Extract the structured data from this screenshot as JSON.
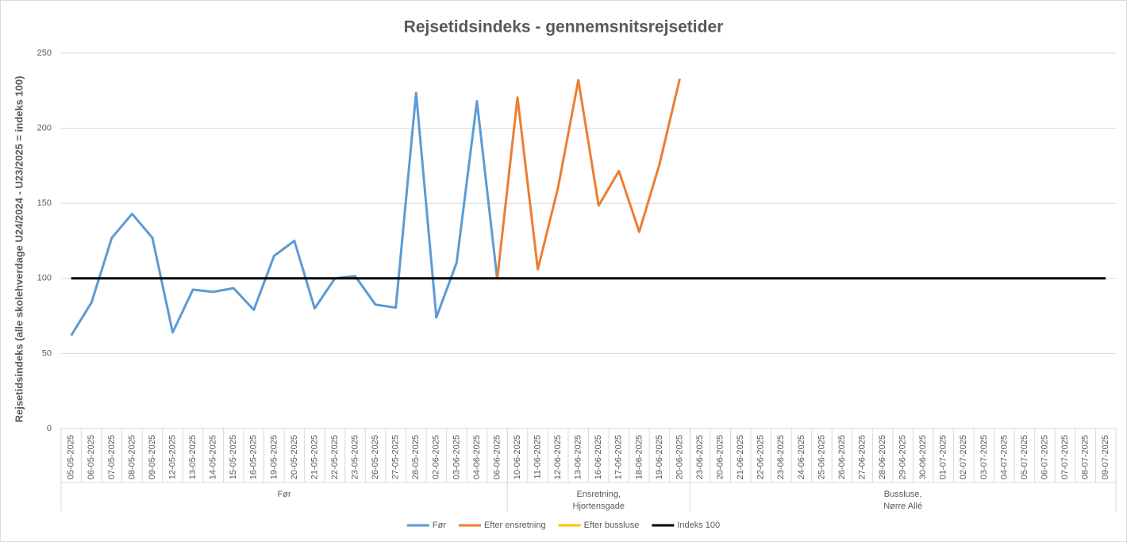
{
  "chart_data": {
    "type": "line",
    "title": "Rejsetidsindeks - gennemsnitsrejsetider",
    "y_label": "Rejsetidsindeks (alle skolehverdage U24/2024 - U23/2025 = indeks 100)",
    "categories": [
      "05-05-2025",
      "06-05-2025",
      "07-05-2025",
      "08-05-2025",
      "09-05-2025",
      "12-05-2025",
      "13-05-2025",
      "14-05-2025",
      "15-05-2025",
      "16-05-2025",
      "19-05-2025",
      "20-05-2025",
      "21-05-2025",
      "22-05-2025",
      "23-05-2025",
      "26-05-2025",
      "27-05-2025",
      "28-05-2025",
      "02-06-2025",
      "03-06-2025",
      "04-06-2025",
      "06-06-2025",
      "10-06-2025",
      "11-06-2025",
      "12-06-2025",
      "13-06-2025",
      "16-06-2025",
      "17-06-2025",
      "18-06-2025",
      "19-06-2025",
      "20-06-2025",
      "23-06-2025",
      "20-06-2025",
      "21-06-2025",
      "22-06-2025",
      "23-06-2025",
      "24-06-2025",
      "25-06-2025",
      "26-06-2025",
      "27-06-2025",
      "28-06-2025",
      "29-06-2025",
      "30-06-2025",
      "01-07-2025",
      "02-07-2025",
      "03-07-2025",
      "04-07-2025",
      "05-07-2025",
      "06-07-2025",
      "07-07-2025",
      "08-07-2025",
      "09-07-2025"
    ],
    "groups": [
      {
        "label": [
          "Før"
        ],
        "span": 22
      },
      {
        "label": [
          "Ensretning,",
          "Hjortensgade"
        ],
        "span": 9
      },
      {
        "label": [
          "Bussluse,",
          "Nørre Allé"
        ],
        "span": 21
      }
    ],
    "series": [
      {
        "name": "Før",
        "color": "#5b9bd5",
        "values": [
          62,
          84,
          127,
          143,
          127,
          64,
          92.5,
          91,
          93.5,
          79,
          115,
          125,
          80,
          100,
          101.5,
          82.5,
          80.5,
          223.5,
          74,
          110.5,
          218,
          99.5,
          null,
          null,
          null,
          null,
          null,
          null,
          null,
          null,
          null,
          null,
          null,
          null,
          null,
          null,
          null,
          null,
          null,
          null,
          null,
          null,
          null,
          null,
          null,
          null,
          null,
          null,
          null,
          null,
          null,
          null
        ]
      },
      {
        "name": "Efter ensretning",
        "color": "#ed7d31",
        "values": [
          null,
          null,
          null,
          null,
          null,
          null,
          null,
          null,
          null,
          null,
          null,
          null,
          null,
          null,
          null,
          null,
          null,
          null,
          null,
          null,
          null,
          99.5,
          220.5,
          106,
          160.5,
          232,
          148.5,
          171.5,
          131,
          176,
          233,
          null,
          null,
          null,
          null,
          null,
          null,
          null,
          null,
          null,
          null,
          null,
          null,
          null,
          null,
          null,
          null,
          null,
          null,
          null,
          null,
          null
        ]
      },
      {
        "name": "Efter bussluse",
        "color": "#ffc000",
        "values": [
          null,
          null,
          null,
          null,
          null,
          null,
          null,
          null,
          null,
          null,
          null,
          null,
          null,
          null,
          null,
          null,
          null,
          null,
          null,
          null,
          null,
          null,
          null,
          null,
          null,
          null,
          null,
          null,
          null,
          null,
          null,
          null,
          null,
          null,
          null,
          null,
          null,
          null,
          null,
          null,
          null,
          null,
          null,
          null,
          null,
          null,
          null,
          null,
          null,
          null,
          null,
          null
        ]
      },
      {
        "name": "Indeks 100",
        "color": "#000000",
        "values": [
          100,
          100,
          100,
          100,
          100,
          100,
          100,
          100,
          100,
          100,
          100,
          100,
          100,
          100,
          100,
          100,
          100,
          100,
          100,
          100,
          100,
          100,
          100,
          100,
          100,
          100,
          100,
          100,
          100,
          100,
          100,
          100,
          100,
          100,
          100,
          100,
          100,
          100,
          100,
          100,
          100,
          100,
          100,
          100,
          100,
          100,
          100,
          100,
          100,
          100,
          100,
          100
        ]
      }
    ],
    "ylim": [
      0,
      250
    ],
    "yticks": [
      0,
      50,
      100,
      150,
      200,
      250
    ],
    "grid": true,
    "legend": "bottom"
  }
}
